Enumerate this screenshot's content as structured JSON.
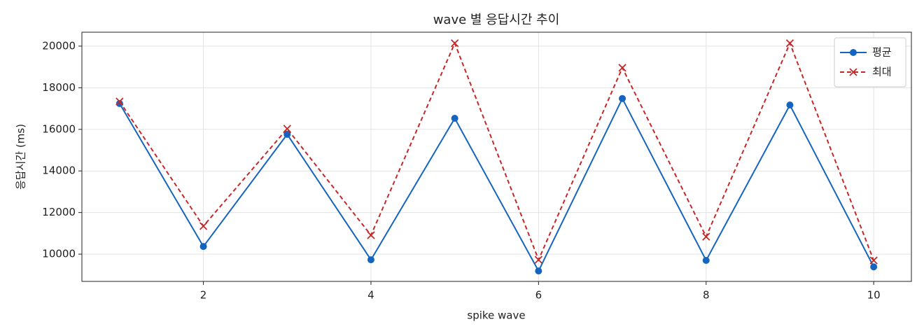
{
  "chart_data": {
    "type": "line",
    "title": "wave 별 응답시간 추이",
    "x_label": "spike wave",
    "y_label": "응답시간 (ms)",
    "x": [
      1,
      2,
      3,
      4,
      5,
      6,
      7,
      8,
      9,
      10
    ],
    "series": [
      {
        "name": "평균",
        "color": "#1565c0",
        "dash": "solid",
        "marker": "circle",
        "values": [
          17240,
          10370,
          15760,
          9730,
          16530,
          9190,
          17480,
          9700,
          17170,
          9390
        ]
      },
      {
        "name": "최대",
        "color": "#c62828",
        "dash": "dashed",
        "marker": "x",
        "values": [
          17340,
          11350,
          16030,
          10910,
          20140,
          9730,
          18960,
          10840,
          20140,
          9700
        ]
      }
    ],
    "xlim": [
      0.55,
      10.45
    ],
    "xticks": [
      2,
      4,
      6,
      8,
      10
    ],
    "ylim": [
      8690,
      20670
    ],
    "yticks": [
      10000,
      12000,
      14000,
      16000,
      18000,
      20000
    ],
    "grid": true,
    "legend": "upper right"
  }
}
